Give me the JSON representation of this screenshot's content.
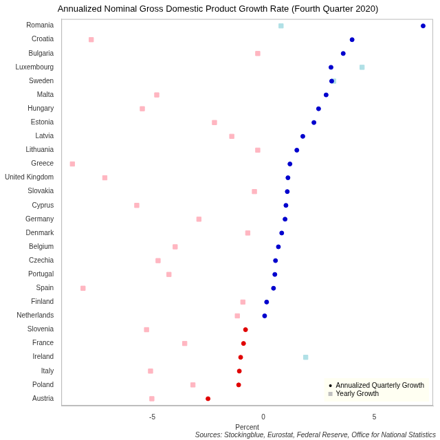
{
  "chart_data": {
    "type": "scatter",
    "title": "Annualized Nominal Gross Domestic Product Growth Rate (Fourth Quarter 2020)",
    "x_label": "Percent",
    "source": "Sources: Stockingblue, Eurostat, Federal Reserve, Office for National Statistics",
    "orientation": "horizontal",
    "grid": false,
    "legend": "bottom right",
    "categories": [
      "Romania",
      "Croatia",
      "Bulgaria",
      "Luxembourg",
      "Sweden",
      "Malta",
      "Hungary",
      "Estonia",
      "Latvia",
      "Lithuania",
      "Greece",
      "United Kingdom",
      "Slovakia",
      "Cyprus",
      "Germany",
      "Denmark",
      "Belgium",
      "Czechia",
      "Portugal",
      "Spain",
      "Finland",
      "Netherlands",
      "Slovenia",
      "France",
      "Ireland",
      "Italy",
      "Poland",
      "Austria"
    ],
    "xlim": [
      -9.1,
      7.65
    ],
    "xticks": [
      -5,
      0,
      5
    ],
    "series": [
      {
        "name": "Annualized Quarterly Growth",
        "marker": "circle",
        "color": "#000000",
        "values": [
          7.2,
          4.0,
          3.6,
          3.05,
          3.08,
          2.83,
          2.49,
          2.28,
          1.78,
          1.51,
          1.2,
          1.11,
          1.08,
          1.02,
          0.98,
          0.83,
          0.68,
          0.55,
          0.52,
          0.46,
          0.15,
          0.06,
          -0.8,
          -0.89,
          -1.02,
          -1.08,
          -1.11,
          -2.49
        ],
        "colors": [
          "#0000cd",
          "#0000cd",
          "#0000cd",
          "#0000cd",
          "#0000cd",
          "#0000cd",
          "#0000cd",
          "#0000cd",
          "#0000cd",
          "#0000cd",
          "#0000cd",
          "#0000cd",
          "#0000cd",
          "#0000cd",
          "#0000cd",
          "#0000cd",
          "#0000cd",
          "#0000cd",
          "#0000cd",
          "#0000cd",
          "#0000cd",
          "#0000cd",
          "#e00000",
          "#e00000",
          "#e00000",
          "#e00000",
          "#e00000",
          "#e00000"
        ]
      },
      {
        "name": "Yearly Growth",
        "marker": "square",
        "color": "#c0c0c0",
        "values": [
          0.8,
          -7.75,
          -0.25,
          4.45,
          3.17,
          -4.8,
          -5.45,
          -2.2,
          -1.42,
          -0.25,
          -8.6,
          -7.14,
          -0.4,
          -5.7,
          -2.9,
          -0.7,
          -3.97,
          -4.74,
          -4.25,
          -8.12,
          -0.92,
          -1.17,
          -5.26,
          -3.54,
          1.91,
          -5.08,
          -3.17,
          -5.02
        ],
        "colors": [
          "#b0e0e6",
          "#ffb6c1",
          "#ffb6c1",
          "#b0e0e6",
          "#b0e0e6",
          "#ffb6c1",
          "#ffb6c1",
          "#ffb6c1",
          "#ffb6c1",
          "#ffb6c1",
          "#ffb6c1",
          "#ffb6c1",
          "#ffb6c1",
          "#ffb6c1",
          "#ffb6c1",
          "#ffb6c1",
          "#ffb6c1",
          "#ffb6c1",
          "#ffb6c1",
          "#ffb6c1",
          "#ffb6c1",
          "#ffb6c1",
          "#ffb6c1",
          "#ffb6c1",
          "#b0e0e6",
          "#ffb6c1",
          "#ffb6c1",
          "#ffb6c1"
        ]
      }
    ]
  }
}
